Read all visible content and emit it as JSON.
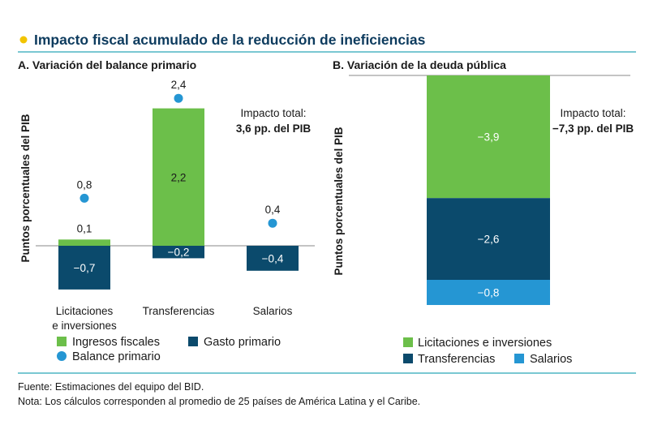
{
  "title": "Impacto fiscal acumulado de la reducción de ineficiencias",
  "colors": {
    "title_dot": "#f2c400",
    "rule": "#2aa6b8",
    "ingresos": "#6cbf4a",
    "gasto": "#0b4a6c",
    "balance": "#2596d3",
    "licitaciones": "#6cbf4a",
    "transferencias": "#0b4a6c",
    "salarios": "#2596d3"
  },
  "footer": {
    "source": "Fuente: Estimaciones del equipo del BID.",
    "note": "Nota: Los cálculos corresponden al promedio de 25 países de América Latina y el Caribe."
  },
  "chart_data": [
    {
      "type": "bar",
      "title": "A. Variación del balance primario",
      "ylabel": "Puntos porcentuales del PIB",
      "ylim": [
        -0.9,
        2.7
      ],
      "categories": [
        "Licitaciones e inversiones",
        "Transferencias",
        "Salarios"
      ],
      "category_lines": [
        [
          "Licitaciones",
          "e inversiones"
        ],
        [
          "Transferencias"
        ],
        [
          "Salarios"
        ]
      ],
      "series": [
        {
          "name": "Ingresos fiscales",
          "values": [
            0.1,
            2.2,
            0.0
          ],
          "labels": [
            "0,1",
            "2,2",
            ""
          ]
        },
        {
          "name": "Gasto primario",
          "values": [
            -0.7,
            -0.2,
            -0.4
          ],
          "labels": [
            "−0,7",
            "−0,2",
            "−0,4"
          ]
        },
        {
          "name": "Balance primario",
          "values": [
            0.8,
            2.4,
            0.4
          ],
          "labels": [
            "0,8",
            "2,4",
            "0,4"
          ],
          "kind": "dot"
        }
      ],
      "annotation": {
        "line1": "Impacto total:",
        "line2": "3,6 pp. del PIB"
      },
      "legend_position": "bottom"
    },
    {
      "type": "bar",
      "title": "B. Variación de la deuda pública",
      "ylabel": "Puntos porcentuales del PIB",
      "ylim": [
        -7.3,
        0
      ],
      "stacked": true,
      "series": [
        {
          "name": "Licitaciones e inversiones",
          "value": -3.9,
          "label": "−3,9"
        },
        {
          "name": "Transferencias",
          "value": -2.6,
          "label": "−2,6"
        },
        {
          "name": "Salarios",
          "value": -0.8,
          "label": "−0,8"
        }
      ],
      "annotation": {
        "line1": "Impacto total:",
        "line2": "−7,3 pp. del PIB"
      },
      "legend_position": "bottom"
    }
  ]
}
